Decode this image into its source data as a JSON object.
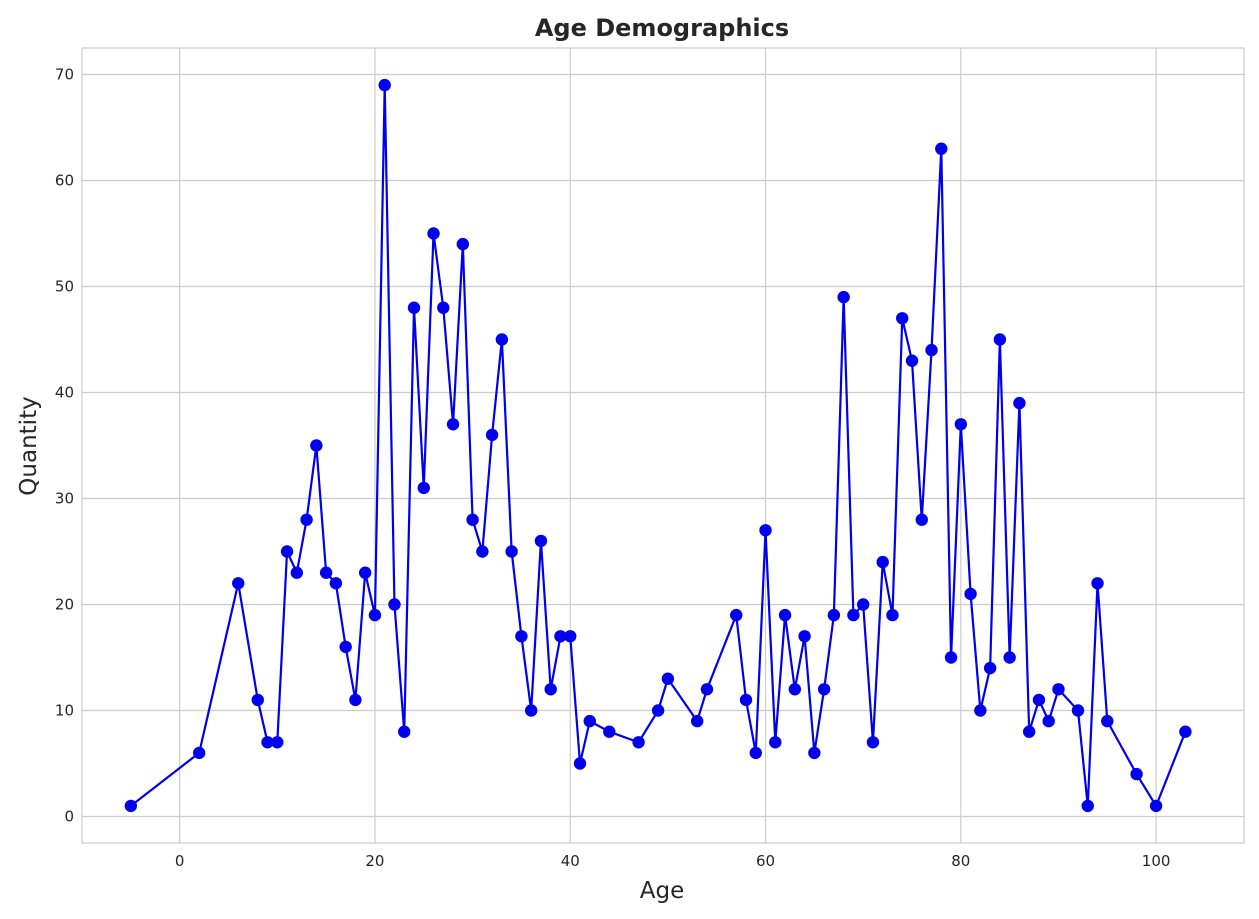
{
  "chart_data": {
    "type": "line",
    "title": "Age Demographics",
    "xlabel": "Age",
    "ylabel": "Quantity",
    "xlim": [
      -10,
      109
    ],
    "ylim": [
      -2.5,
      72.5
    ],
    "xticks": [
      0,
      20,
      40,
      60,
      80,
      100
    ],
    "yticks": [
      0,
      10,
      20,
      30,
      40,
      50,
      60,
      70
    ],
    "grid": true,
    "series": [
      {
        "color": "#0000ee",
        "marker": "circle",
        "x": [
          -5,
          2,
          6,
          8,
          9,
          10,
          11,
          12,
          13,
          14,
          15,
          16,
          17,
          18,
          19,
          20,
          21,
          22,
          23,
          24,
          25,
          26,
          27,
          28,
          29,
          30,
          31,
          32,
          33,
          34,
          35,
          36,
          37,
          38,
          39,
          40,
          41,
          42,
          44,
          47,
          49,
          50,
          53,
          54,
          57,
          58,
          59,
          60,
          61,
          62,
          63,
          64,
          65,
          66,
          67,
          68,
          69,
          70,
          71,
          72,
          73,
          74,
          75,
          76,
          77,
          78,
          79,
          80,
          81,
          82,
          83,
          84,
          85,
          86,
          87,
          88,
          89,
          90,
          92,
          93,
          94,
          95,
          98,
          100,
          103
        ],
        "y": [
          1,
          6,
          22,
          11,
          7,
          7,
          25,
          23,
          28,
          35,
          23,
          22,
          16,
          11,
          23,
          19,
          69,
          20,
          8,
          48,
          31,
          55,
          48,
          37,
          54,
          28,
          25,
          36,
          45,
          25,
          17,
          10,
          26,
          12,
          17,
          17,
          5,
          9,
          8,
          7,
          10,
          13,
          9,
          12,
          19,
          11,
          6,
          27,
          7,
          19,
          12,
          17,
          6,
          12,
          19,
          49,
          19,
          20,
          7,
          24,
          19,
          47,
          43,
          28,
          44,
          63,
          15,
          37,
          21,
          10,
          14,
          45,
          15,
          39,
          8,
          11,
          9,
          12,
          10,
          1,
          22,
          9,
          4,
          1,
          8
        ]
      }
    ]
  }
}
